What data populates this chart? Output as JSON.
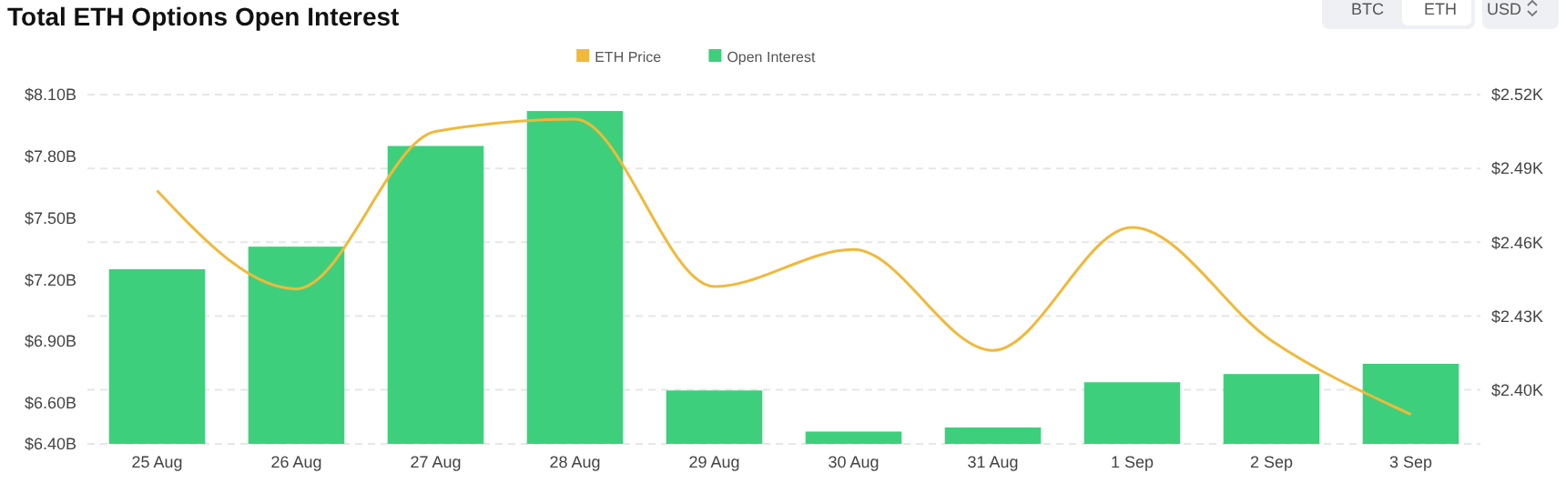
{
  "chart_data": {
    "type": "bar",
    "title": "Total ETH Options Open Interest",
    "annotations": [
      "BTC",
      "ETH",
      "USD"
    ],
    "categories": [
      "25 Aug",
      "26 Aug",
      "27 Aug",
      "28 Aug",
      "29 Aug",
      "30 Aug",
      "31 Aug",
      "1 Sep",
      "2 Sep",
      "3 Sep"
    ],
    "series": [
      {
        "name": "ETH Price",
        "type": "line",
        "axis": "y2",
        "color": "#f0b93a",
        "values": [
          2.481,
          2.441,
          2.505,
          2.51,
          2.442,
          2.457,
          2.416,
          2.466,
          2.42,
          2.39
        ]
      },
      {
        "name": "Open Interest",
        "color": "#3ecf7d",
        "values": [
          7.25,
          7.36,
          7.85,
          8.02,
          6.66,
          6.46,
          6.48,
          6.7,
          6.74,
          6.79
        ]
      }
    ],
    "ylim": [
      6.4,
      8.1
    ],
    "yticks": [
      {
        "value": 6.4,
        "label": "$6.40B"
      },
      {
        "value": 6.6,
        "label": "$6.60B"
      },
      {
        "value": 6.9,
        "label": "$6.90B"
      },
      {
        "value": 7.2,
        "label": "$7.20B"
      },
      {
        "value": 7.5,
        "label": "$7.50B"
      },
      {
        "value": 7.8,
        "label": "$7.80B"
      },
      {
        "value": 8.1,
        "label": "$8.10B"
      }
    ],
    "y2lim": [
      2.378,
      2.52
    ],
    "y2ticks": [
      {
        "value": 2.4,
        "label": "$2.40K"
      },
      {
        "value": 2.43,
        "label": "$2.43K"
      },
      {
        "value": 2.46,
        "label": "$2.46K"
      },
      {
        "value": 2.49,
        "label": "$2.49K"
      },
      {
        "value": 2.52,
        "label": "$2.52K"
      }
    ],
    "grid": "y2",
    "legend": "top",
    "marker": "none",
    "line_style": "solid"
  }
}
